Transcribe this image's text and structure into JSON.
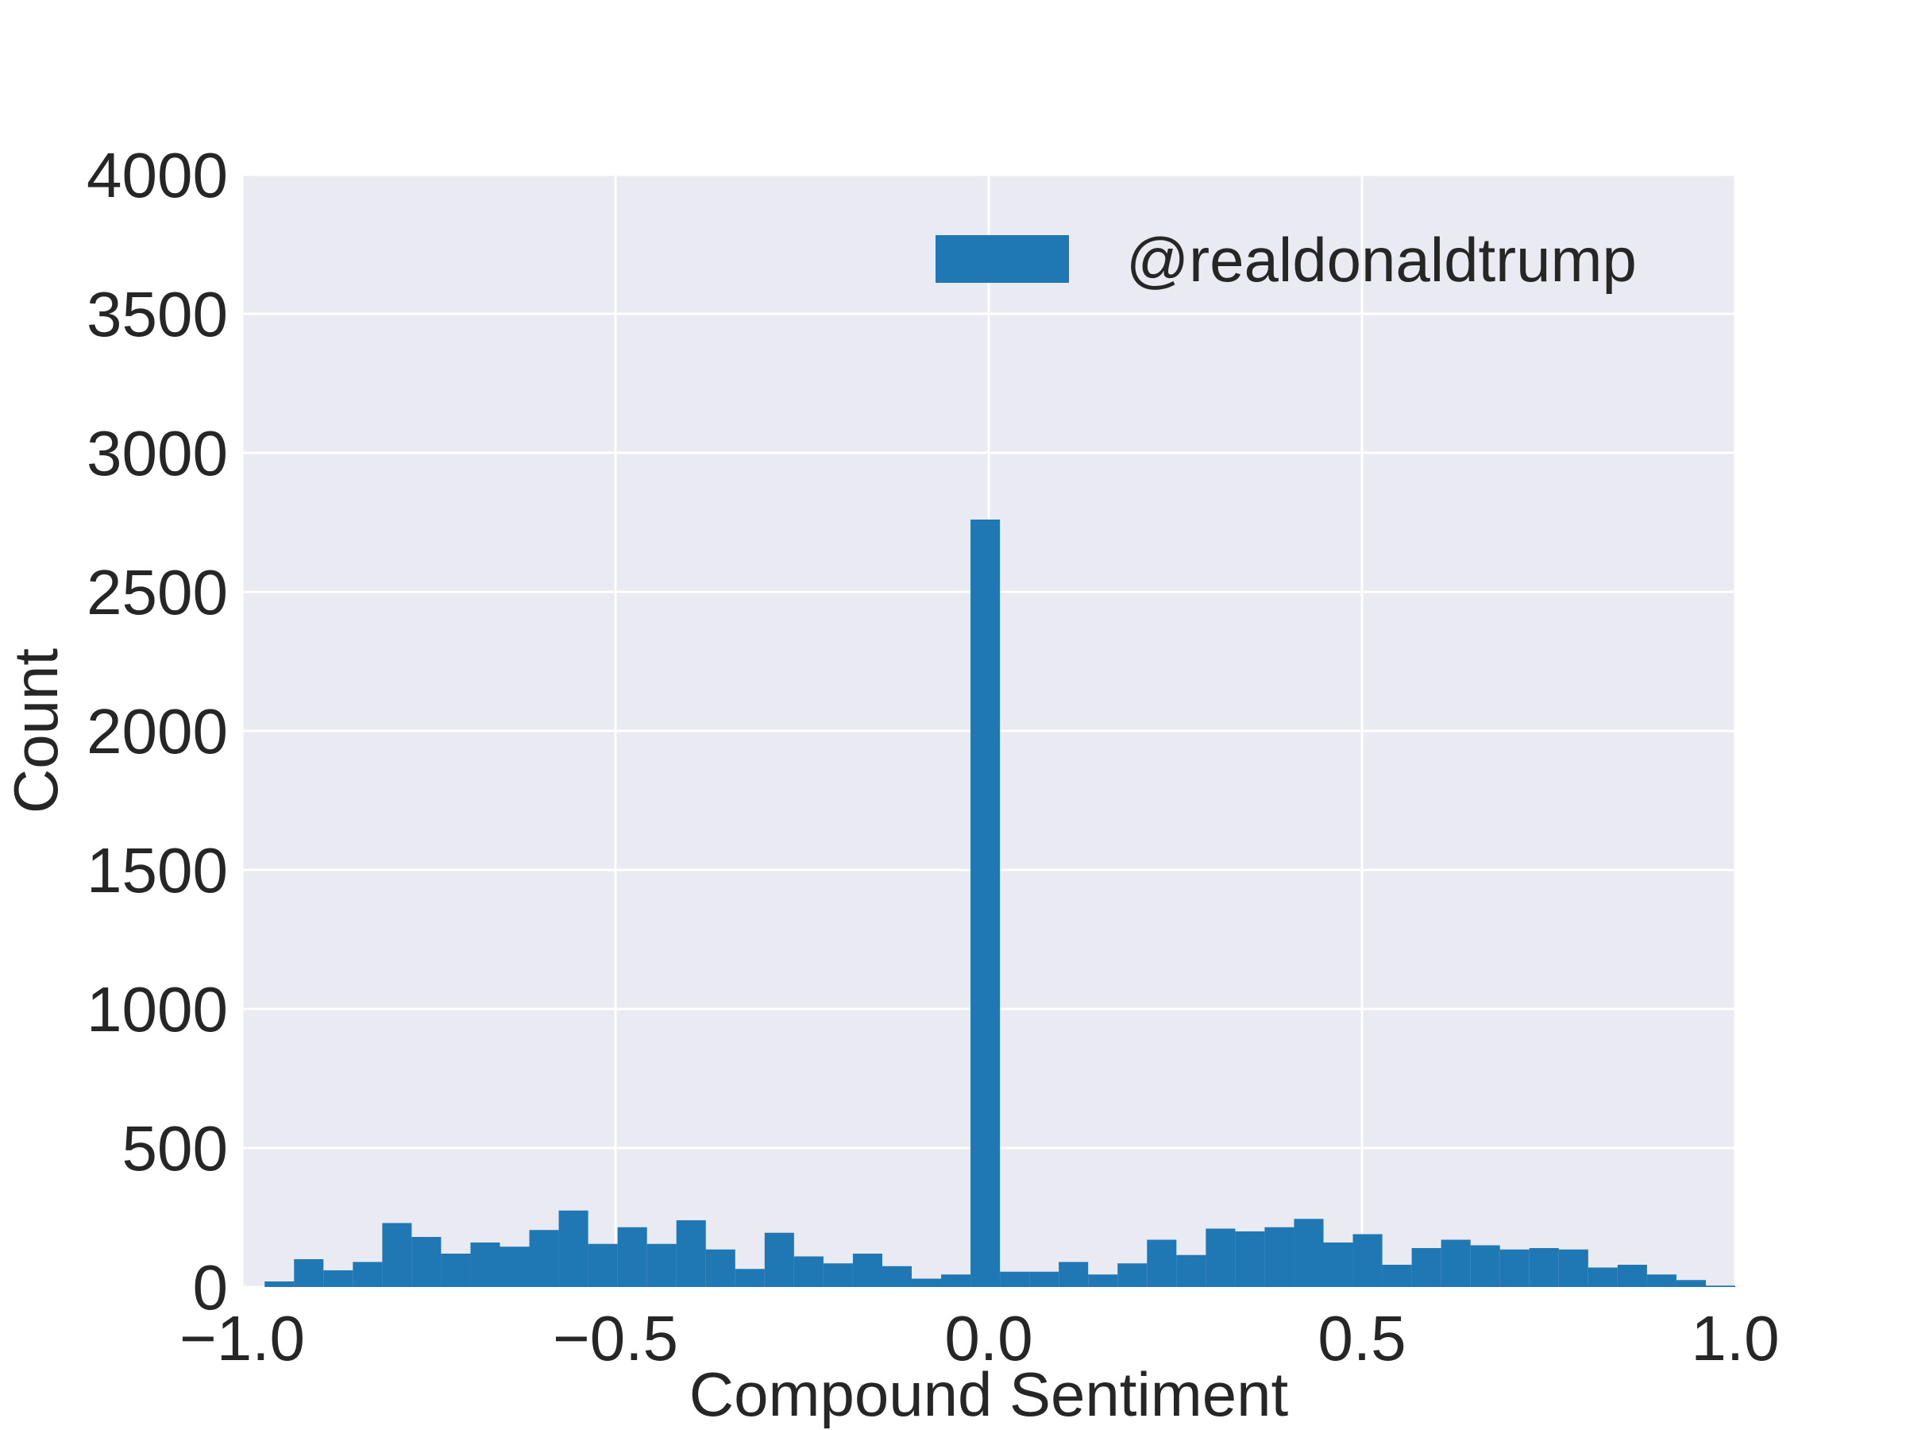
{
  "chart_data": {
    "type": "bar",
    "title": "",
    "xlabel": "Compound Sentiment",
    "ylabel": "Count",
    "xlim": [
      -1.0,
      1.0
    ],
    "ylim": [
      0,
      4000
    ],
    "xticks": [
      "−1.0",
      "−0.5",
      "0.0",
      "0.5",
      "1.0"
    ],
    "xtick_values": [
      -1.0,
      -0.5,
      0.0,
      0.5,
      1.0
    ],
    "yticks": [
      "0",
      "500",
      "1000",
      "1500",
      "2000",
      "2500",
      "3000",
      "3500",
      "4000"
    ],
    "ytick_values": [
      0,
      500,
      1000,
      1500,
      2000,
      2500,
      3000,
      3500,
      4000
    ],
    "grid": true,
    "legend_position": "top-right",
    "bins": {
      "start": -0.97,
      "width": 0.0394,
      "counts": [
        20,
        100,
        60,
        90,
        230,
        180,
        120,
        160,
        145,
        205,
        275,
        155,
        215,
        155,
        240,
        135,
        65,
        195,
        110,
        85,
        120,
        75,
        30,
        45,
        2760,
        55,
        55,
        90,
        45,
        85,
        170,
        115,
        210,
        200,
        215,
        245,
        160,
        190,
        80,
        140,
        170,
        150,
        135,
        140,
        135,
        70,
        80,
        45,
        25,
        5
      ]
    },
    "series": [
      {
        "name": "@realdonaldtrump",
        "color": "#1f77b4"
      }
    ],
    "background_color": "#eaeaf2",
    "grid_color": "#ffffff"
  }
}
